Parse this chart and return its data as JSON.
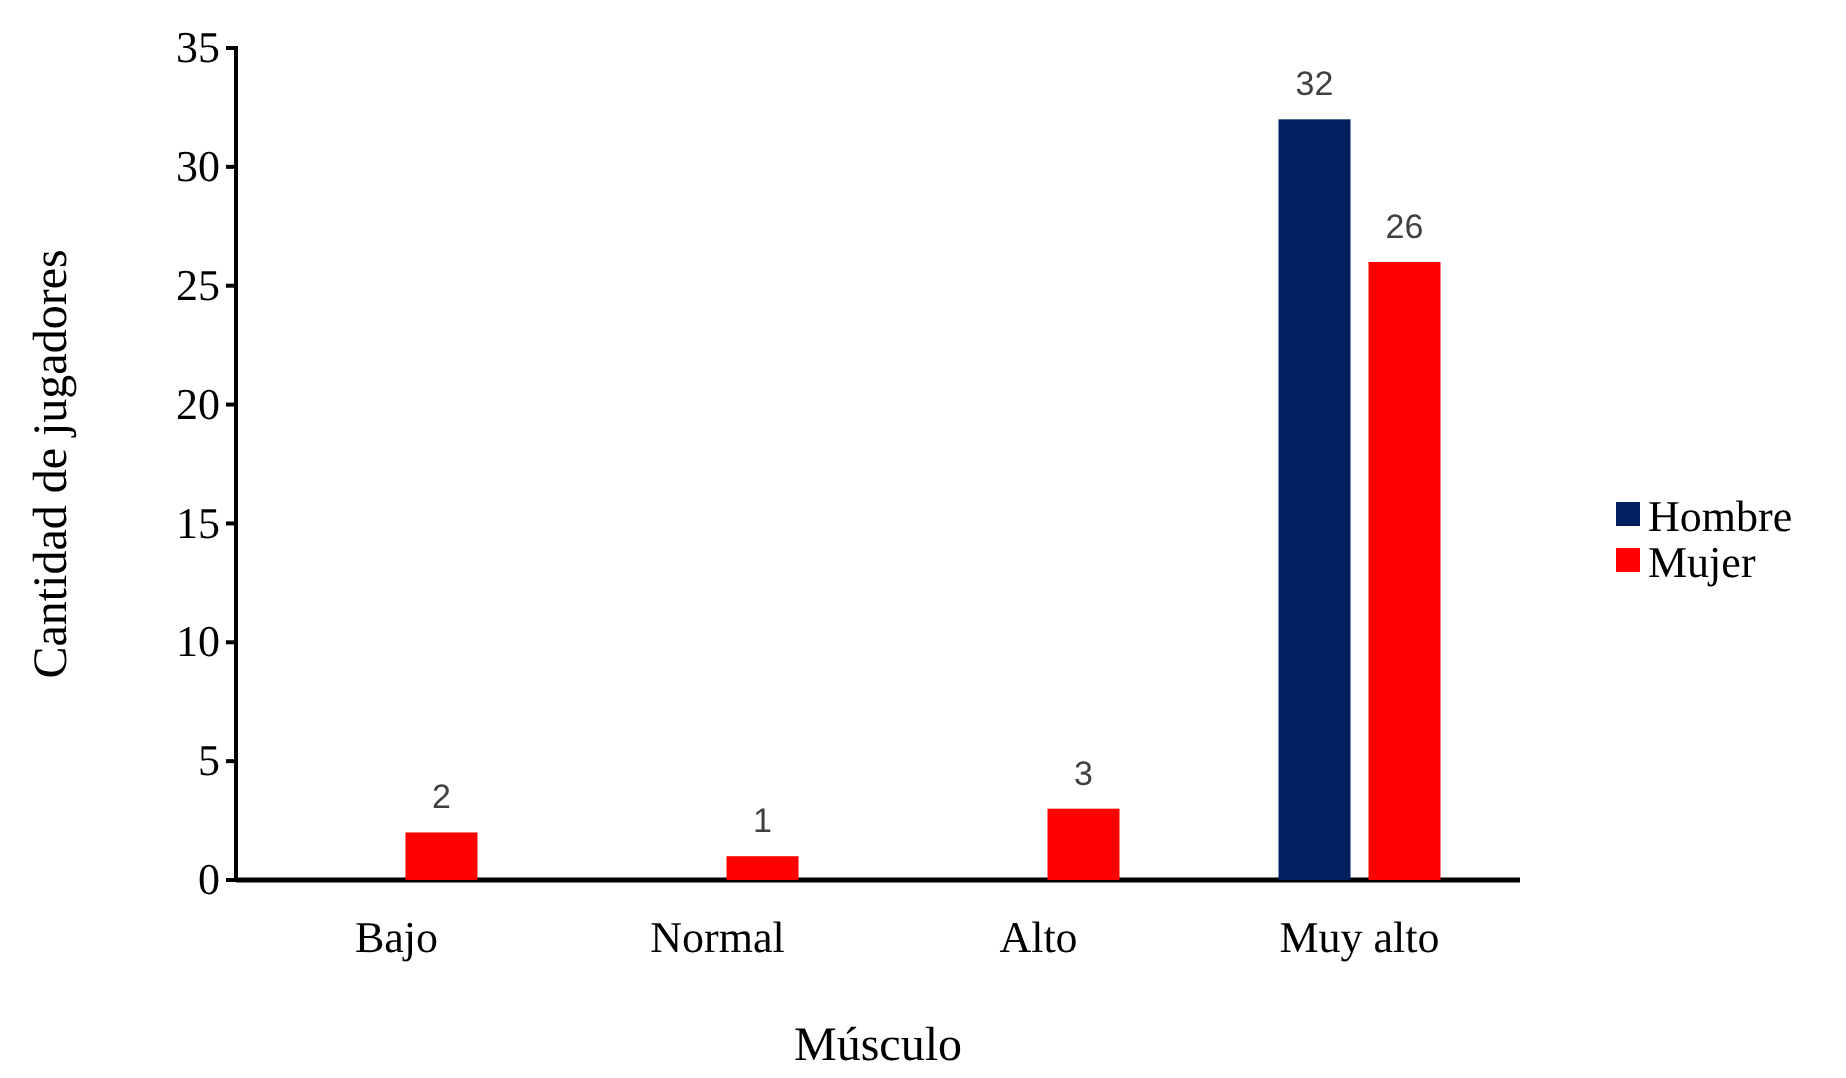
{
  "chart_data": {
    "type": "bar",
    "xlabel": "Músculo",
    "ylabel": "Cantidad de jugadores",
    "categories": [
      "Bajo",
      "Normal",
      "Alto",
      "Muy alto"
    ],
    "series": [
      {
        "name": "Hombre",
        "color": "#002060",
        "values": [
          null,
          null,
          null,
          32
        ],
        "value_labels": [
          null,
          null,
          null,
          "32"
        ]
      },
      {
        "name": "Mujer",
        "color": "#ff0000",
        "values": [
          2,
          1,
          3,
          26
        ],
        "value_labels": [
          "2",
          "1",
          "3",
          "26"
        ]
      }
    ],
    "ylim": [
      0,
      35
    ],
    "yticks": [
      0,
      5,
      10,
      15,
      20,
      25,
      30,
      35
    ],
    "grid": false,
    "legend": "right"
  }
}
